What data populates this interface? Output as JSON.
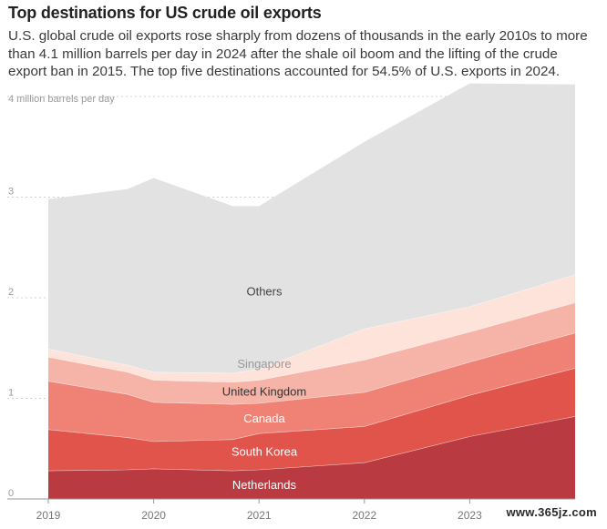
{
  "header": {
    "title": "Top destinations for US crude oil exports",
    "subtitle": "U.S. global crude oil exports rose sharply from dozens of thousands in the early 2010s to more than 4.1 million barrels per day in 2024 after the shale oil boom and the lifting of the crude export ban in 2015. The top five destinations accounted for 54.5% of U.S. exports in 2024."
  },
  "watermark": "www.365jz.com",
  "chart_data": {
    "type": "area",
    "stacked": true,
    "ylabel": "4 million barrels per day",
    "ylim": [
      0,
      4
    ],
    "xlim": [
      2019,
      2024
    ],
    "x": [
      2019,
      2019.75,
      2020,
      2020.75,
      2021,
      2022,
      2023,
      2024
    ],
    "xticks": [
      "2019",
      "2020",
      "2021",
      "2022",
      "2023"
    ],
    "yticks": [
      "0",
      "1",
      "2",
      "3"
    ],
    "grid": true,
    "series": [
      {
        "name": "Netherlands",
        "color": "#b93a40",
        "values": [
          0.28,
          0.29,
          0.3,
          0.28,
          0.29,
          0.36,
          0.62,
          0.82
        ]
      },
      {
        "name": "South Korea",
        "color": "#e0544c",
        "values": [
          0.41,
          0.32,
          0.27,
          0.31,
          0.36,
          0.36,
          0.41,
          0.48
        ]
      },
      {
        "name": "Canada",
        "color": "#ef8275",
        "values": [
          0.48,
          0.43,
          0.39,
          0.35,
          0.3,
          0.34,
          0.33,
          0.35
        ]
      },
      {
        "name": "United Kingdom",
        "color": "#f6b3a7",
        "values": [
          0.24,
          0.22,
          0.22,
          0.22,
          0.23,
          0.32,
          0.3,
          0.3
        ]
      },
      {
        "name": "Singapore",
        "color": "#fde3da",
        "values": [
          0.08,
          0.07,
          0.08,
          0.09,
          0.11,
          0.31,
          0.25,
          0.28
        ]
      },
      {
        "name": "Others",
        "color": "#e2e2e2",
        "values": [
          1.49,
          1.75,
          1.93,
          1.66,
          1.62,
          1.86,
          2.22,
          1.89
        ]
      }
    ]
  }
}
